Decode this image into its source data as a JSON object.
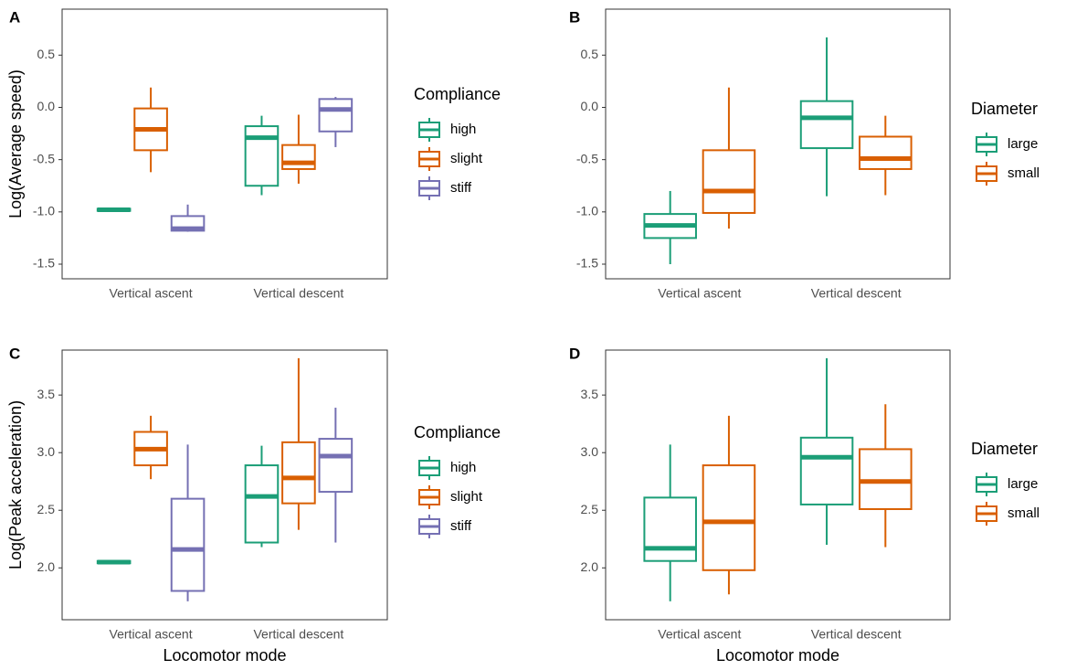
{
  "chart_data": [
    {
      "type": "box",
      "label": "A",
      "ylabel": "Log(Average speed)",
      "legend_title": "Compliance",
      "categories": [
        "Vertical ascent",
        "Vertical descent"
      ],
      "ylim": [
        -1.64,
        0.94
      ],
      "yticks": [
        0.5,
        {
          "value": 0,
          "label": "0.0"
        },
        -0.5,
        {
          "value": -1,
          "label": "-1.0"
        },
        -1.5
      ],
      "series": [
        {
          "name": "high",
          "color": "#1b9e77",
          "min": [
            -0.99,
            -0.84
          ],
          "q1": [
            -0.99,
            -0.75
          ],
          "median": [
            -0.98,
            -0.29
          ],
          "q3": [
            -0.97,
            -0.18
          ],
          "max": [
            -0.97,
            -0.08
          ]
        },
        {
          "name": "slight",
          "color": "#d95f02",
          "min": [
            -0.62,
            -0.73
          ],
          "q1": [
            -0.41,
            -0.59
          ],
          "median": [
            -0.21,
            -0.53
          ],
          "q3": [
            -0.01,
            -0.36
          ],
          "max": [
            0.19,
            -0.07
          ]
        },
        {
          "name": "stiff",
          "color": "#7570b3",
          "min": [
            -1.19,
            -0.38
          ],
          "q1": [
            -1.18,
            -0.23
          ],
          "median": [
            -1.16,
            -0.02
          ],
          "q3": [
            -1.04,
            0.08
          ],
          "max": [
            -0.93,
            0.1
          ]
        }
      ]
    },
    {
      "type": "box",
      "label": "B",
      "legend_title": "Diameter",
      "categories": [
        "Vertical ascent",
        "Vertical descent"
      ],
      "ylim": [
        -1.64,
        0.94
      ],
      "yticks": [
        0.5,
        {
          "value": 0,
          "label": "0.0"
        },
        -0.5,
        {
          "value": -1,
          "label": "-1.0"
        },
        -1.5
      ],
      "series": [
        {
          "name": "large",
          "color": "#1b9e77",
          "min": [
            -1.5,
            -0.85
          ],
          "q1": [
            -1.25,
            -0.39
          ],
          "median": [
            -1.13,
            -0.1
          ],
          "q3": [
            -1.02,
            0.06
          ],
          "max": [
            -0.8,
            0.67
          ]
        },
        {
          "name": "small",
          "color": "#d95f02",
          "min": [
            -1.16,
            -0.84
          ],
          "q1": [
            -1.01,
            -0.59
          ],
          "median": [
            -0.8,
            -0.49
          ],
          "q3": [
            -0.41,
            -0.28
          ],
          "max": [
            0.19,
            -0.08
          ]
        }
      ]
    },
    {
      "type": "box",
      "label": "C",
      "ylabel": "Log(Peak acceleration)",
      "xlabel": "Locomotor mode",
      "legend_title": "Compliance",
      "categories": [
        "Vertical ascent",
        "Vertical descent"
      ],
      "ylim": [
        1.55,
        3.89
      ],
      "yticks": [
        3.5,
        {
          "value": 3,
          "label": "3.0"
        },
        2.5,
        {
          "value": 2,
          "label": "2.0"
        }
      ],
      "series": [
        {
          "name": "high",
          "color": "#1b9e77",
          "min": [
            2.04,
            2.18
          ],
          "q1": [
            2.04,
            2.22
          ],
          "median": [
            2.05,
            2.62
          ],
          "q3": [
            2.06,
            2.89
          ],
          "max": [
            2.06,
            3.06
          ]
        },
        {
          "name": "slight",
          "color": "#d95f02",
          "min": [
            2.77,
            2.33
          ],
          "q1": [
            2.89,
            2.56
          ],
          "median": [
            3.03,
            2.78
          ],
          "q3": [
            3.18,
            3.09
          ],
          "max": [
            3.32,
            3.82
          ]
        },
        {
          "name": "stiff",
          "color": "#7570b3",
          "min": [
            1.71,
            2.22
          ],
          "q1": [
            1.8,
            2.66
          ],
          "median": [
            2.16,
            2.97
          ],
          "q3": [
            2.6,
            3.12
          ],
          "max": [
            3.07,
            3.39
          ]
        }
      ]
    },
    {
      "type": "box",
      "label": "D",
      "xlabel": "Locomotor mode",
      "legend_title": "Diameter",
      "categories": [
        "Vertical ascent",
        "Vertical descent"
      ],
      "ylim": [
        1.55,
        3.89
      ],
      "yticks": [
        3.5,
        {
          "value": 3,
          "label": "3.0"
        },
        2.5,
        {
          "value": 2,
          "label": "2.0"
        }
      ],
      "series": [
        {
          "name": "large",
          "color": "#1b9e77",
          "min": [
            1.71,
            2.2
          ],
          "q1": [
            2.06,
            2.55
          ],
          "median": [
            2.17,
            2.96
          ],
          "q3": [
            2.61,
            3.13
          ],
          "max": [
            3.07,
            3.82
          ]
        },
        {
          "name": "small",
          "color": "#d95f02",
          "min": [
            1.77,
            2.18
          ],
          "q1": [
            1.98,
            2.51
          ],
          "median": [
            2.4,
            2.75
          ],
          "q3": [
            2.89,
            3.03
          ],
          "max": [
            3.32,
            3.42
          ]
        }
      ]
    }
  ]
}
